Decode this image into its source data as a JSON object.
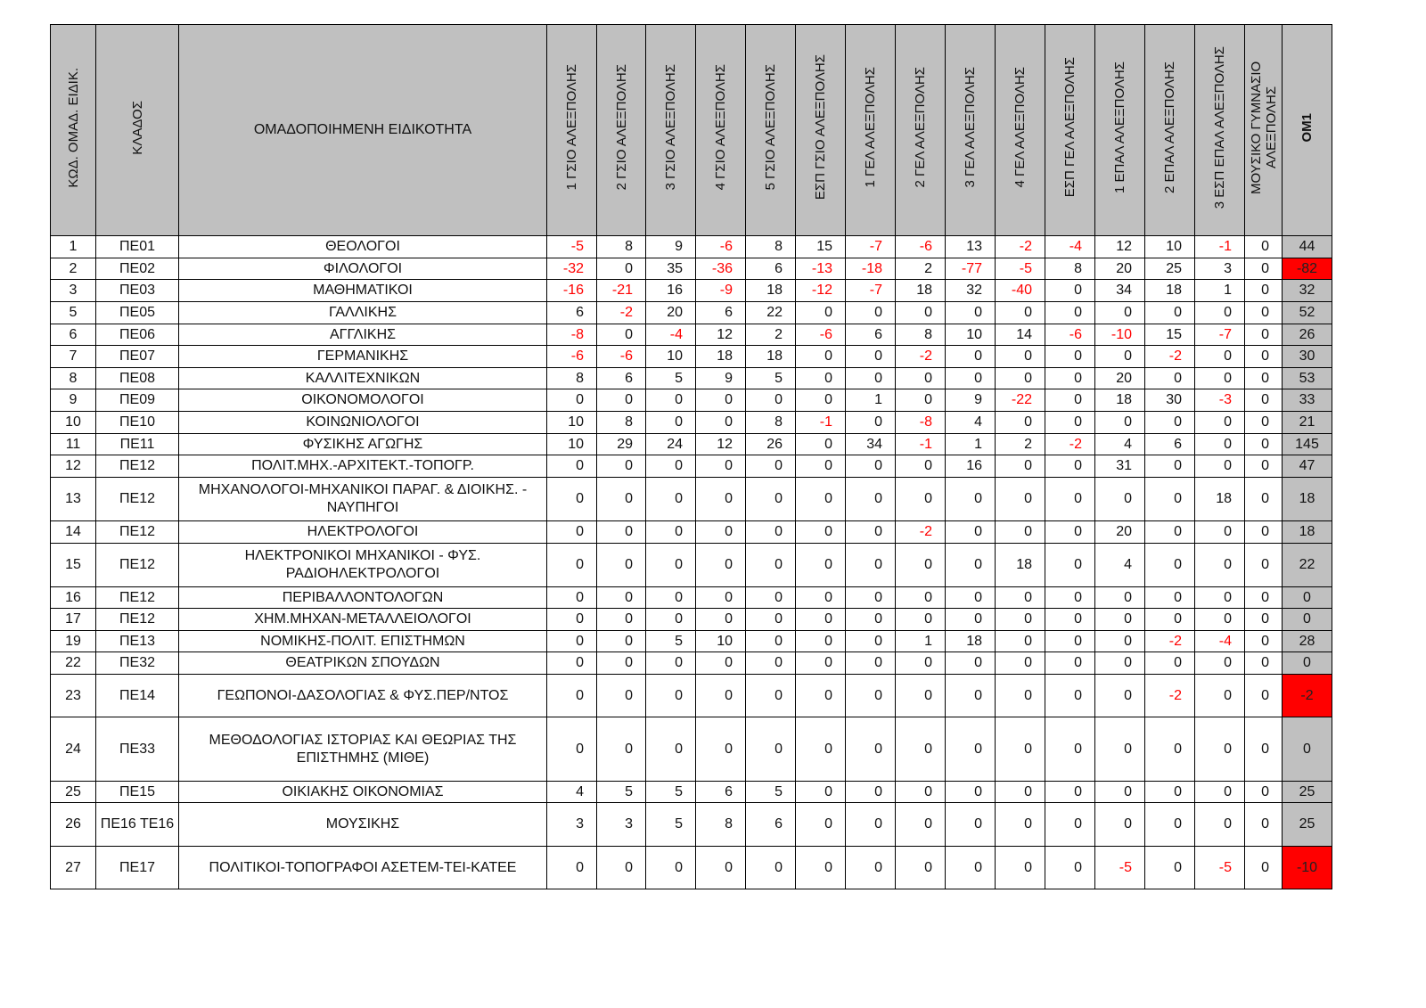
{
  "header": {
    "code": "ΚΩΔ. ΟΜΑΔ. ΕΙΔΙΚ.",
    "klados": "ΚΛΑΔΟΣ",
    "specialty": "ΟΜΑΔΟΠΟΙΗΜΕΝΗ ΕΙΔΙΚΟΤΗΤΑ",
    "schools": [
      "1 ΓΣΙΟ ΑΛΕΞΠΟΛΗΣ",
      "2 ΓΣΙΟ ΑΛΕΞΠΟΛΗΣ",
      "3 ΓΣΙΟ ΑΛΕΞΠΟΛΗΣ",
      "4 ΓΣΙΟ ΑΛΕΞΠΟΛΗΣ",
      "5 ΓΣΙΟ ΑΛΕΞΠΟΛΗΣ",
      "ΕΣΠ ΓΣΙΟ ΑΛΕΞΠΟΛΗΣ",
      "1 ΓΕΛ ΑΛΕΞΠΟΛΗΣ",
      "2 ΓΕΛ ΑΛΕΞΠΟΛΗΣ",
      "3 ΓΕΛ ΑΛΕΞΠΟΛΗΣ",
      "4 ΓΕΛ ΑΛΕΞΠΟΛΗΣ",
      "ΕΣΠ ΓΕΛ ΑΛΕΞΠΟΛΗΣ",
      "1 ΕΠΑΛ ΑΛΕΞΠΟΛΗΣ",
      "2 ΕΠΑΛ ΑΛΕΞΠΟΛΗΣ",
      "3 ΕΣΠ ΕΠΑΛ ΑΛΕΞΠΟΛΗΣ",
      "ΜΟΥΣΙΚΟ ΓΥΜΝΑΣΙΟ ΑΛΕΞΠΟΛΗΣ"
    ],
    "total": "ΟΜ1"
  },
  "colors": {
    "negative_text": "#ff0000",
    "negative_total_bg": "#ff0000",
    "header_bg": "#c0c0c0"
  },
  "rows": [
    {
      "code": "1",
      "klados": "ΠΕ01",
      "specialty": "ΘΕΟΛΟΓΟΙ",
      "values": [
        "-5",
        "8",
        "9",
        "-6",
        "8",
        "15",
        "-7",
        "-6",
        "13",
        "-2",
        "-4",
        "12",
        "10",
        "-1",
        "0"
      ],
      "total": "44"
    },
    {
      "code": "2",
      "klados": "ΠΕ02",
      "specialty": "ΦΙΛΟΛΟΓΟΙ",
      "values": [
        "-32",
        "0",
        "35",
        "-36",
        "6",
        "-13",
        "-18",
        "2",
        "-77",
        "-5",
        "8",
        "20",
        "25",
        "3",
        "0"
      ],
      "total": "-82"
    },
    {
      "code": "3",
      "klados": "ΠΕ03",
      "specialty": "ΜΑΘΗΜΑΤΙΚΟΙ",
      "values": [
        "-16",
        "-21",
        "16",
        "-9",
        "18",
        "-12",
        "-7",
        "18",
        "32",
        "-40",
        "0",
        "34",
        "18",
        "1",
        "0"
      ],
      "total": "32"
    },
    {
      "code": "5",
      "klados": "ΠΕ05",
      "specialty": "ΓΑΛΛΙΚΗΣ",
      "values": [
        "6",
        "-2",
        "20",
        "6",
        "22",
        "0",
        "0",
        "0",
        "0",
        "0",
        "0",
        "0",
        "0",
        "0",
        "0"
      ],
      "total": "52"
    },
    {
      "code": "6",
      "klados": "ΠΕ06",
      "specialty": "ΑΓΓΛΙΚΗΣ",
      "values": [
        "-8",
        "0",
        "-4",
        "12",
        "2",
        "-6",
        "6",
        "8",
        "10",
        "14",
        "-6",
        "-10",
        "15",
        "-7",
        "0"
      ],
      "total": "26"
    },
    {
      "code": "7",
      "klados": "ΠΕ07",
      "specialty": "ΓΕΡΜΑΝΙΚΗΣ",
      "values": [
        "-6",
        "-6",
        "10",
        "18",
        "18",
        "0",
        "0",
        "-2",
        "0",
        "0",
        "0",
        "0",
        "-2",
        "0",
        "0"
      ],
      "total": "30"
    },
    {
      "code": "8",
      "klados": "ΠΕ08",
      "specialty": "ΚΑΛΛΙΤΕΧΝΙΚΩΝ",
      "values": [
        "8",
        "6",
        "5",
        "9",
        "5",
        "0",
        "0",
        "0",
        "0",
        "0",
        "0",
        "20",
        "0",
        "0",
        "0"
      ],
      "total": "53"
    },
    {
      "code": "9",
      "klados": "ΠΕ09",
      "specialty": "ΟΙΚΟΝΟΜΟΛΟΓΟΙ",
      "values": [
        "0",
        "0",
        "0",
        "0",
        "0",
        "0",
        "1",
        "0",
        "9",
        "-22",
        "0",
        "18",
        "30",
        "-3",
        "0"
      ],
      "total": "33"
    },
    {
      "code": "10",
      "klados": "ΠΕ10",
      "specialty": "ΚΟΙΝΩΝΙΟΛΟΓΟΙ",
      "values": [
        "10",
        "8",
        "0",
        "0",
        "8",
        "-1",
        "0",
        "-8",
        "4",
        "0",
        "0",
        "0",
        "0",
        "0",
        "0"
      ],
      "total": "21"
    },
    {
      "code": "11",
      "klados": "ΠΕ11",
      "specialty": "ΦΥΣΙΚΗΣ ΑΓΩΓΗΣ",
      "values": [
        "10",
        "29",
        "24",
        "12",
        "26",
        "0",
        "34",
        "-1",
        "1",
        "2",
        "-2",
        "4",
        "6",
        "0",
        "0"
      ],
      "total": "145"
    },
    {
      "code": "12",
      "klados": "ΠΕ12",
      "specialty": "ΠΟΛΙΤ.ΜΗΧ.-ΑΡΧΙΤΕΚΤ.-ΤΟΠΟΓΡ.",
      "values": [
        "0",
        "0",
        "0",
        "0",
        "0",
        "0",
        "0",
        "0",
        "16",
        "0",
        "0",
        "31",
        "0",
        "0",
        "0"
      ],
      "total": "47"
    },
    {
      "code": "13",
      "klados": "ΠΕ12",
      "specialty": "ΜΗΧΑΝΟΛΟΓΟΙ-ΜΗΧΑΝΙΚΟΙ ΠΑΡΑΓ. & ΔΙΟΙΚΗΣ. - ΝΑΥΠΗΓΟΙ",
      "values": [
        "0",
        "0",
        "0",
        "0",
        "0",
        "0",
        "0",
        "0",
        "0",
        "0",
        "0",
        "0",
        "0",
        "18",
        "0"
      ],
      "total": "18"
    },
    {
      "code": "14",
      "klados": "ΠΕ12",
      "specialty": "ΗΛΕΚΤΡΟΛΟΓΟΙ",
      "values": [
        "0",
        "0",
        "0",
        "0",
        "0",
        "0",
        "0",
        "-2",
        "0",
        "0",
        "0",
        "20",
        "0",
        "0",
        "0"
      ],
      "total": "18"
    },
    {
      "code": "15",
      "klados": "ΠΕ12",
      "specialty": "ΗΛΕΚΤΡΟΝΙΚΟΙ ΜΗΧΑΝΙΚΟΙ - ΦΥΣ. ΡΑΔΙΟΗΛΕΚΤΡΟΛΟΓΟΙ",
      "values": [
        "0",
        "0",
        "0",
        "0",
        "0",
        "0",
        "0",
        "0",
        "0",
        "18",
        "0",
        "4",
        "0",
        "0",
        "0"
      ],
      "total": "22"
    },
    {
      "code": "16",
      "klados": "ΠΕ12",
      "specialty": "ΠΕΡΙΒΑΛΛΟΝΤΟΛΟΓΩΝ",
      "values": [
        "0",
        "0",
        "0",
        "0",
        "0",
        "0",
        "0",
        "0",
        "0",
        "0",
        "0",
        "0",
        "0",
        "0",
        "0"
      ],
      "total": "0"
    },
    {
      "code": "17",
      "klados": "ΠΕ12",
      "specialty": "ΧΗΜ.ΜΗΧΑΝ-ΜΕΤΑΛΛΕΙΟΛΟΓΟΙ",
      "values": [
        "0",
        "0",
        "0",
        "0",
        "0",
        "0",
        "0",
        "0",
        "0",
        "0",
        "0",
        "0",
        "0",
        "0",
        "0"
      ],
      "total": "0"
    },
    {
      "code": "19",
      "klados": "ΠΕ13",
      "specialty": "ΝΟΜΙΚΗΣ-ΠΟΛΙΤ. ΕΠΙΣΤΗΜΩΝ",
      "values": [
        "0",
        "0",
        "5",
        "10",
        "0",
        "0",
        "0",
        "1",
        "18",
        "0",
        "0",
        "0",
        "-2",
        "-4",
        "0"
      ],
      "total": "28"
    },
    {
      "code": "22",
      "klados": "ΠΕ32",
      "specialty": "ΘΕΑΤΡΙΚΩΝ ΣΠΟΥΔΩΝ",
      "values": [
        "0",
        "0",
        "0",
        "0",
        "0",
        "0",
        "0",
        "0",
        "0",
        "0",
        "0",
        "0",
        "0",
        "0",
        "0"
      ],
      "total": "0"
    },
    {
      "code": "23",
      "klados": "ΠΕ14",
      "specialty": "ΓΕΩΠΟΝΟΙ-ΔΑΣΟΛΟΓΙΑΣ & ΦΥΣ.ΠΕΡ/ΝΤΟΣ",
      "values": [
        "0",
        "0",
        "0",
        "0",
        "0",
        "0",
        "0",
        "0",
        "0",
        "0",
        "0",
        "0",
        "-2",
        "0",
        "0"
      ],
      "total": "-2"
    },
    {
      "code": "24",
      "klados": "ΠΕ33",
      "specialty": "ΜΕΘΟΔΟΛΟΓΙΑΣ ΙΣΤΟΡΙΑΣ ΚΑΙ ΘΕΩΡΙΑΣ ΤΗΣ ΕΠΙΣΤΗΜΗΣ (ΜΙΘΕ)",
      "values": [
        "0",
        "0",
        "0",
        "0",
        "0",
        "0",
        "0",
        "0",
        "0",
        "0",
        "0",
        "0",
        "0",
        "0",
        "0"
      ],
      "total": "0"
    },
    {
      "code": "25",
      "klados": "ΠΕ15",
      "specialty": "ΟΙΚΙΑΚΗΣ ΟΙΚΟΝΟΜΙΑΣ",
      "values": [
        "4",
        "5",
        "5",
        "6",
        "5",
        "0",
        "0",
        "0",
        "0",
        "0",
        "0",
        "0",
        "0",
        "0",
        "0"
      ],
      "total": "25"
    },
    {
      "code": "26",
      "klados": "ΠΕ16 ΤΕ16",
      "specialty": "ΜΟΥΣΙΚΗΣ",
      "values": [
        "3",
        "3",
        "5",
        "8",
        "6",
        "0",
        "0",
        "0",
        "0",
        "0",
        "0",
        "0",
        "0",
        "0",
        "0"
      ],
      "total": "25"
    },
    {
      "code": "27",
      "klados": "ΠΕ17",
      "specialty": "ΠΟΛΙΤΙΚΟΙ-ΤΟΠΟΓΡΑΦΟΙ ΑΣΕΤΕΜ-ΤΕΙ-ΚΑΤΕΕ",
      "values": [
        "0",
        "0",
        "0",
        "0",
        "0",
        "0",
        "0",
        "0",
        "0",
        "0",
        "0",
        "-5",
        "0",
        "-5",
        "0"
      ],
      "total": "-10"
    }
  ]
}
